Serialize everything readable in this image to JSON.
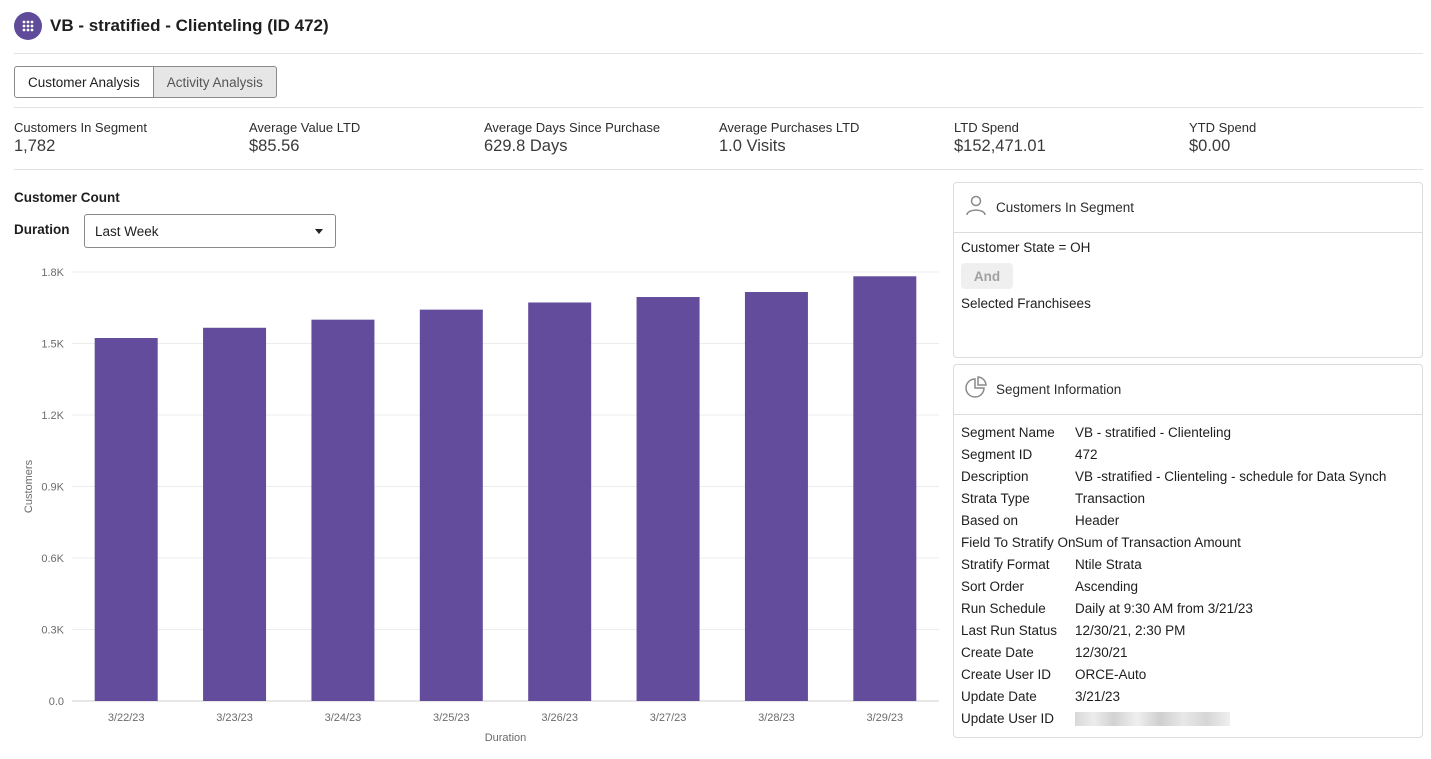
{
  "header": {
    "title": "VB - stratified - Clienteling (ID 472)",
    "icon": "grid-dots-icon",
    "accent": "#5f4b99"
  },
  "tabs": [
    {
      "label": "Customer Analysis",
      "active": true
    },
    {
      "label": "Activity Analysis",
      "active": false
    }
  ],
  "metrics": [
    {
      "label": "Customers In Segment",
      "value": "1,782"
    },
    {
      "label": "Average Value LTD",
      "value": "$85.56"
    },
    {
      "label": "Average Days Since Purchase",
      "value": "629.8 Days"
    },
    {
      "label": "Average Purchases LTD",
      "value": "1.0 Visits"
    },
    {
      "label": "LTD Spend",
      "value": "$152,471.01"
    },
    {
      "label": "YTD Spend",
      "value": "$0.00"
    }
  ],
  "customer_count": {
    "title": "Customer Count",
    "duration_label": "Duration",
    "duration_value": "Last Week"
  },
  "chart_data": {
    "type": "bar",
    "categories": [
      "3/22/23",
      "3/23/23",
      "3/24/23",
      "3/25/23",
      "3/26/23",
      "3/27/23",
      "3/28/23",
      "3/29/23"
    ],
    "values": [
      1523,
      1566,
      1600,
      1642,
      1672,
      1695,
      1716,
      1782
    ],
    "xlabel": "Duration",
    "ylabel": "Customers",
    "ylim": [
      0,
      1800
    ],
    "yticks": [
      {
        "value": 0,
        "label": "0.0"
      },
      {
        "value": 300,
        "label": "0.3K"
      },
      {
        "value": 600,
        "label": "0.6K"
      },
      {
        "value": 900,
        "label": "0.9K"
      },
      {
        "value": 1200,
        "label": "1.2K"
      },
      {
        "value": 1500,
        "label": "1.5K"
      },
      {
        "value": 1800,
        "label": "1.8K"
      }
    ],
    "grid": true,
    "color": "#624c9b"
  },
  "segment_panel": {
    "title": "Customers In Segment",
    "icon": "person-icon",
    "condition": "Customer State = OH",
    "operator": "And",
    "condition2": "Selected Franchisees"
  },
  "info_panel": {
    "title": "Segment Information",
    "icon": "pie-chart-icon",
    "rows": [
      {
        "label": "Segment Name",
        "value": "VB - stratified - Clienteling"
      },
      {
        "label": "Segment ID",
        "value": "472"
      },
      {
        "label": "Description",
        "value": "VB -stratified - Clienteling - schedule for Data Synch"
      },
      {
        "label": "Strata Type",
        "value": "Transaction"
      },
      {
        "label": "Based on",
        "value": "Header"
      },
      {
        "label": "Field To Stratify On",
        "value": "Sum of Transaction Amount"
      },
      {
        "label": "Stratify Format",
        "value": "Ntile Strata"
      },
      {
        "label": "Sort Order",
        "value": "Ascending"
      },
      {
        "label": "Run Schedule",
        "value": "Daily at 9:30 AM from 3/21/23"
      },
      {
        "label": "Last Run Status",
        "value": "12/30/21, 2:30 PM"
      },
      {
        "label": "Create Date",
        "value": "12/30/21"
      },
      {
        "label": "Create User ID",
        "value": "ORCE-Auto"
      },
      {
        "label": "Update Date",
        "value": "3/21/23"
      },
      {
        "label": "Update User ID",
        "value": ""
      }
    ]
  }
}
